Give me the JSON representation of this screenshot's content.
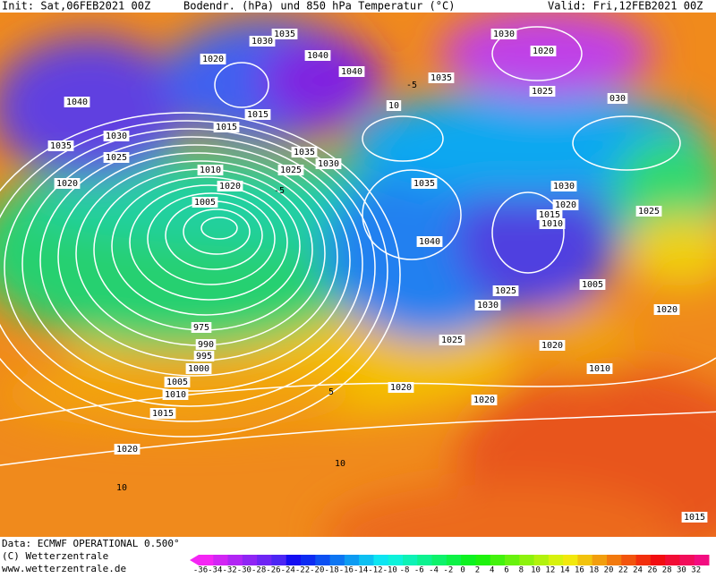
{
  "header": {
    "init": "Init: Sat,06FEB2021 00Z",
    "title": "Bodendr. (hPa) und 850 hPa Temperatur (°C)",
    "valid": "Valid: Fri,12FEB2021 00Z"
  },
  "map": {
    "isobar_labels": [
      1035,
      1030,
      1020,
      1040,
      1040,
      1015,
      1040,
      1035,
      1030,
      1025,
      1020,
      1015,
      1010,
      1020,
      1025,
      1035,
      1030,
      1035,
      10,
      1030,
      1020,
      1025,
      "030",
      1035,
      1040,
      1030,
      1020,
      1015,
      1010,
      1025,
      1005,
      1020,
      1025,
      1030,
      1025,
      1020,
      1010,
      1020,
      1020,
      975,
      990,
      995,
      1000,
      1005,
      1010,
      1015,
      1020,
      1015,
      1005
    ],
    "temperature_labels": [
      -5,
      5,
      10,
      10,
      -5
    ]
  },
  "colorbar": {
    "ticks": [
      -36,
      -34,
      -32,
      -30,
      -28,
      -26,
      -24,
      -22,
      -20,
      -18,
      -16,
      -14,
      -12,
      -10,
      -8,
      -6,
      -4,
      -2,
      0,
      2,
      4,
      6,
      8,
      10,
      12,
      14,
      16,
      18,
      20,
      22,
      24,
      26,
      28,
      30,
      32
    ]
  },
  "footer": {
    "source": "Data: ECMWF OPERATIONAL 0.500°",
    "copyright": "(C) Wetterzentrale",
    "url": "www.wetterzentrale.de"
  }
}
